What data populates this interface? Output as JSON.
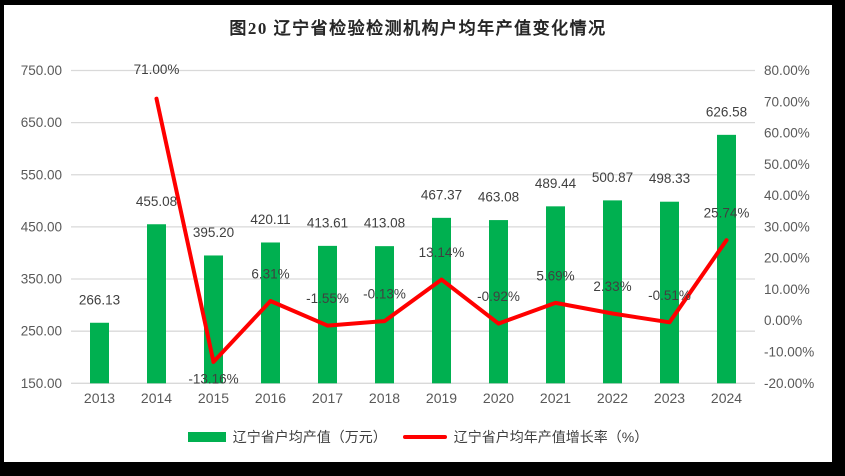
{
  "title": "图20 辽宁省检验检测机构户均年产值变化情况",
  "colors": {
    "bar": "#00B050",
    "line": "#FF0000",
    "gridline": "#D9D9D9",
    "axis_text": "#595959",
    "data_label_text": "#404040",
    "title_text": "#262626",
    "frame": "#000000",
    "background": "#FFFFFF"
  },
  "legend": [
    {
      "swatch": "bar-swatch",
      "label": "辽宁省户均产值（万元）"
    },
    {
      "swatch": "line-swatch",
      "label": "辽宁省户均年产值增长率（%）"
    }
  ],
  "chart_data": {
    "type": "bar",
    "subtype": "combo-bar-line-dual-axis",
    "title": "图20 辽宁省检验检测机构户均年产值变化情况",
    "categories": [
      "2013",
      "2014",
      "2015",
      "2016",
      "2017",
      "2018",
      "2019",
      "2020",
      "2021",
      "2022",
      "2023",
      "2024"
    ],
    "series": [
      {
        "name": "辽宁省户均产值（万元）",
        "type": "bar",
        "axis": "left",
        "values": [
          266.13,
          455.08,
          395.2,
          420.11,
          413.61,
          413.08,
          467.37,
          463.08,
          489.44,
          500.87,
          498.33,
          626.58
        ],
        "data_labels": [
          "266.13",
          "455.08",
          "395.20",
          "420.11",
          "413.61",
          "413.08",
          "467.37",
          "463.08",
          "489.44",
          "500.87",
          "498.33",
          "626.58"
        ]
      },
      {
        "name": "辽宁省户均年产值增长率（%）",
        "type": "line",
        "axis": "right",
        "values": [
          null,
          71.0,
          -13.16,
          6.31,
          -1.55,
          -0.13,
          13.14,
          -0.92,
          5.69,
          2.33,
          -0.51,
          25.74
        ],
        "data_labels": [
          null,
          "71.00%",
          "-13.16%",
          "6.31%",
          "-1.55%",
          "-0.13%",
          "13.14%",
          "-0.92%",
          "5.69%",
          "2.33%",
          "-0.51%",
          "25.74%"
        ]
      }
    ],
    "left_axis": {
      "min": 150,
      "max": 750,
      "step": 100,
      "tick_labels": [
        "150.00",
        "250.00",
        "350.00",
        "450.00",
        "550.00",
        "650.00",
        "750.00"
      ]
    },
    "right_axis": {
      "min": -20,
      "max": 80,
      "step": 10,
      "tick_labels": [
        "-20.00%",
        "-10.00%",
        "0.00%",
        "10.00%",
        "20.00%",
        "30.00%",
        "40.00%",
        "50.00%",
        "60.00%",
        "70.00%",
        "80.00%"
      ]
    },
    "grid": true,
    "legend_position": "bottom"
  }
}
